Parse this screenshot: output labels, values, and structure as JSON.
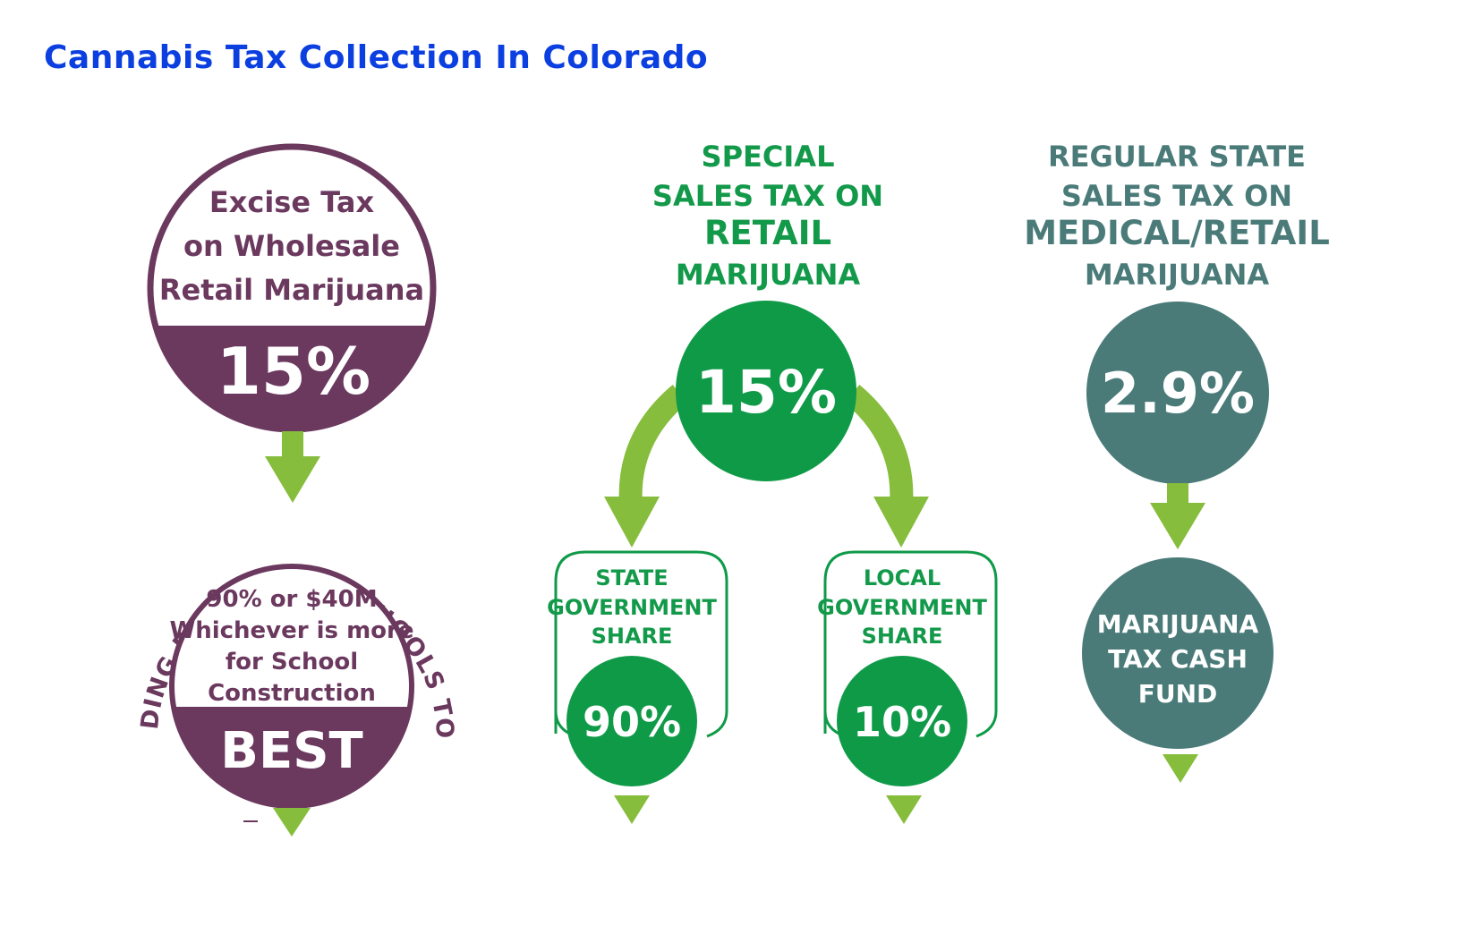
{
  "title": "Cannabis Tax Collection In Colorado",
  "colors": {
    "title": "#0b3fe0",
    "purple": "#6b385e",
    "green_dark": "#0f9a48",
    "green_text": "#13994a",
    "green_arrow": "#86bd3c",
    "teal": "#4a7b79",
    "white": "#ffffff"
  },
  "excise": {
    "label_lines": [
      "Excise Tax",
      "on Wholesale",
      "Retail Marijuana"
    ],
    "rate": "15%",
    "arc_text": "BUILDING EXCELLENT SCHOOLS TODAY",
    "detail_lines": [
      "90% or $40M",
      "Whichever is more",
      "for School",
      "Construction"
    ],
    "program": "BEST",
    "icon": "down-arrow-icon"
  },
  "special": {
    "heading_lines": [
      "SPECIAL",
      "SALES TAX ON",
      "RETAIL",
      "MARIJUANA"
    ],
    "rate": "15%",
    "state_share": {
      "label_lines": [
        "STATE",
        "GOVERNMENT",
        "SHARE"
      ],
      "rate": "90%"
    },
    "local_share": {
      "label_lines": [
        "LOCAL",
        "GOVERNMENT",
        "SHARE"
      ],
      "rate": "10%"
    }
  },
  "regular": {
    "heading_lines": [
      "REGULAR STATE",
      "SALES TAX ON",
      "MEDICAL/RETAIL",
      "MARIJUANA"
    ],
    "rate": "2.9%",
    "fund_lines": [
      "MARIJUANA",
      "TAX CASH",
      "FUND"
    ]
  }
}
